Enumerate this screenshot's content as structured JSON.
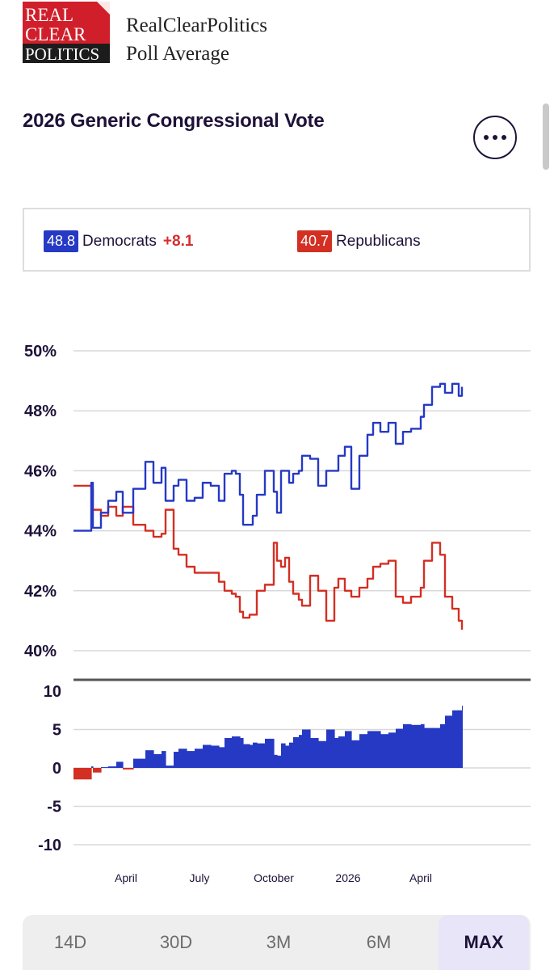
{
  "header": {
    "logo_words": [
      "REAL",
      "CLEAR",
      "POLITICS"
    ],
    "brand_line1": "RealClearPolitics",
    "brand_line2": "Poll Average"
  },
  "title": "2026 Generic Congressional Vote",
  "legend": {
    "dem_value": "48.8",
    "dem_label": "Democrats",
    "spread": "+8.1",
    "rep_value": "40.7",
    "rep_label": "Republicans"
  },
  "colors": {
    "democrats": "#2539c4",
    "republicans": "#d32f23",
    "text": "#1e1238"
  },
  "range_buttons": [
    {
      "label": "14D",
      "active": false
    },
    {
      "label": "30D",
      "active": false
    },
    {
      "label": "3M",
      "active": false
    },
    {
      "label": "6M",
      "active": false
    },
    {
      "label": "MAX",
      "active": true
    }
  ],
  "chart_data": [
    {
      "type": "line",
      "x_ticks": [
        "April",
        "July",
        "October",
        "2026",
        "April"
      ],
      "y_ticks": [
        "50%",
        "48%",
        "46%",
        "44%",
        "42%",
        "40%"
      ],
      "ylim": [
        40,
        50
      ],
      "grid": true,
      "x": [
        "2025-01-26",
        "2025-02-10",
        "2025-02-17",
        "2025-02-19",
        "2025-03-01",
        "2025-03-10",
        "2025-03-20",
        "2025-03-28",
        "2025-04-10",
        "2025-04-25",
        "2025-05-05",
        "2025-05-15",
        "2025-05-20",
        "2025-05-30",
        "2025-06-05",
        "2025-06-15",
        "2025-06-25",
        "2025-07-05",
        "2025-07-15",
        "2025-07-25",
        "2025-08-01",
        "2025-08-10",
        "2025-08-15",
        "2025-08-20",
        "2025-08-24",
        "2025-09-01",
        "2025-09-05",
        "2025-09-10",
        "2025-09-20",
        "2025-10-01",
        "2025-10-05",
        "2025-10-10",
        "2025-10-15",
        "2025-10-20",
        "2025-10-25",
        "2025-11-01",
        "2025-11-05",
        "2025-11-15",
        "2025-11-25",
        "2025-12-05",
        "2025-12-15",
        "2025-12-20",
        "2025-12-28",
        "2026-01-05",
        "2026-01-15",
        "2026-01-25",
        "2026-02-01",
        "2026-02-10",
        "2026-02-20",
        "2026-03-01",
        "2026-03-10",
        "2026-03-20",
        "2026-04-01",
        "2026-04-05",
        "2026-04-15",
        "2026-04-25",
        "2026-05-01",
        "2026-05-10",
        "2026-05-18",
        "2026-05-22"
      ],
      "series": [
        {
          "name": "Democrats",
          "values": [
            44.0,
            44.0,
            45.6,
            44.1,
            44.6,
            45.0,
            45.3,
            44.6,
            45.4,
            46.3,
            45.6,
            46.1,
            45.0,
            45.5,
            45.7,
            45.0,
            45.1,
            45.6,
            45.5,
            45.0,
            45.9,
            46.0,
            45.9,
            45.2,
            44.2,
            44.2,
            44.5,
            45.2,
            46.0,
            45.3,
            44.6,
            46.0,
            46.0,
            45.6,
            45.9,
            46.0,
            46.5,
            46.4,
            45.5,
            46.0,
            46.0,
            46.5,
            46.8,
            45.4,
            46.5,
            47.2,
            47.6,
            47.3,
            47.6,
            46.9,
            47.3,
            47.4,
            47.8,
            48.2,
            48.8,
            48.9,
            48.6,
            48.9,
            48.5,
            48.8
          ]
        },
        {
          "name": "Republicans",
          "values": [
            45.5,
            45.5,
            45.4,
            44.7,
            44.5,
            44.8,
            44.5,
            44.8,
            44.2,
            44.0,
            43.8,
            43.9,
            44.7,
            43.4,
            43.2,
            42.8,
            42.6,
            42.6,
            42.6,
            42.3,
            42.0,
            41.9,
            41.8,
            41.3,
            41.1,
            41.2,
            41.2,
            42.0,
            42.2,
            43.6,
            43.0,
            42.8,
            43.1,
            42.3,
            41.9,
            41.7,
            41.5,
            42.5,
            42.0,
            41.0,
            42.1,
            42.4,
            42.0,
            41.8,
            42.1,
            42.4,
            42.8,
            42.9,
            43.0,
            41.8,
            41.6,
            41.8,
            42.1,
            43.0,
            43.6,
            43.2,
            41.8,
            41.4,
            41.0,
            40.7
          ]
        }
      ]
    },
    {
      "type": "area",
      "y_ticks": [
        "10",
        "5",
        "0",
        "-5",
        "-10"
      ],
      "ylim": [
        -10,
        10
      ],
      "grid": true,
      "series": [
        {
          "name": "Democrats",
          "values": [
            -1.5,
            -1.5,
            0.2,
            -0.6,
            0.1,
            0.2,
            0.8,
            -0.2,
            1.2,
            2.3,
            1.8,
            2.2,
            0.3,
            2.1,
            2.5,
            2.2,
            2.5,
            3.0,
            2.9,
            2.7,
            3.9,
            4.1,
            4.1,
            3.9,
            3.1,
            3.0,
            3.3,
            3.2,
            3.8,
            1.7,
            1.6,
            3.2,
            2.9,
            3.3,
            4.0,
            4.3,
            5.0,
            3.9,
            3.5,
            5.0,
            3.9,
            4.1,
            4.8,
            3.6,
            4.4,
            4.8,
            4.8,
            4.4,
            4.6,
            5.1,
            5.7,
            5.6,
            5.7,
            5.2,
            5.2,
            5.7,
            6.8,
            7.5,
            7.5,
            8.1
          ]
        }
      ]
    }
  ]
}
